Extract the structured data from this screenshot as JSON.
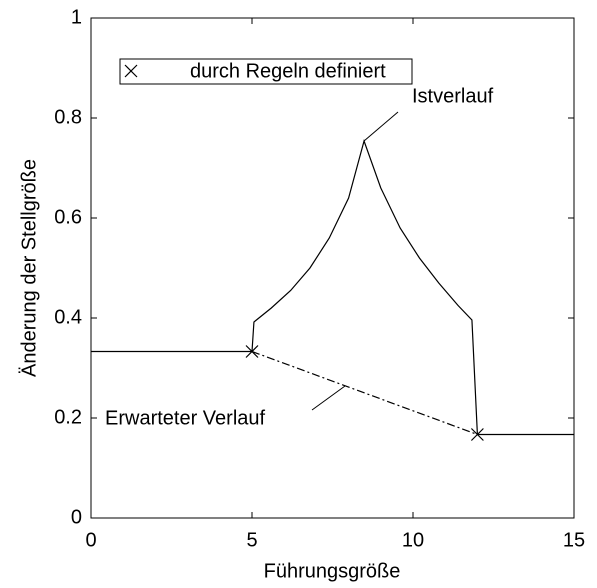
{
  "chart_data": {
    "type": "line",
    "xlabel": "Führungsgröße",
    "ylabel": "Änderung der Stellgröße",
    "xlim": [
      0,
      15
    ],
    "ylim": [
      0,
      1
    ],
    "xticks": [
      0,
      5,
      10,
      15
    ],
    "yticks": [
      0,
      0.2,
      0.4,
      0.6,
      0.8,
      1
    ],
    "series": [
      {
        "color": "#000000",
        "style": "solid",
        "x": [
          0,
          5,
          5.06,
          5.6,
          6.2,
          6.8,
          7.4,
          8.0,
          8.48,
          9.0,
          9.6,
          10.2,
          10.8,
          11.4,
          11.83,
          12,
          15
        ],
        "values": [
          0.333,
          0.333,
          0.392,
          0.42,
          0.455,
          0.5,
          0.56,
          0.64,
          0.754,
          0.66,
          0.58,
          0.52,
          0.47,
          0.425,
          0.396,
          0.167,
          0.167
        ]
      },
      {
        "color": "#000000",
        "style": "dashdot",
        "x": [
          5,
          12
        ],
        "values": [
          0.333,
          0.167
        ]
      },
      {
        "name": "durch Regeln definiert",
        "color": "#000000",
        "marker": "x",
        "x": [
          5,
          12
        ],
        "values": [
          0.333,
          0.167
        ]
      }
    ],
    "annotations": [
      {
        "text": "Istverlauf"
      },
      {
        "text": "Erwarteter Verlauf"
      }
    ]
  }
}
